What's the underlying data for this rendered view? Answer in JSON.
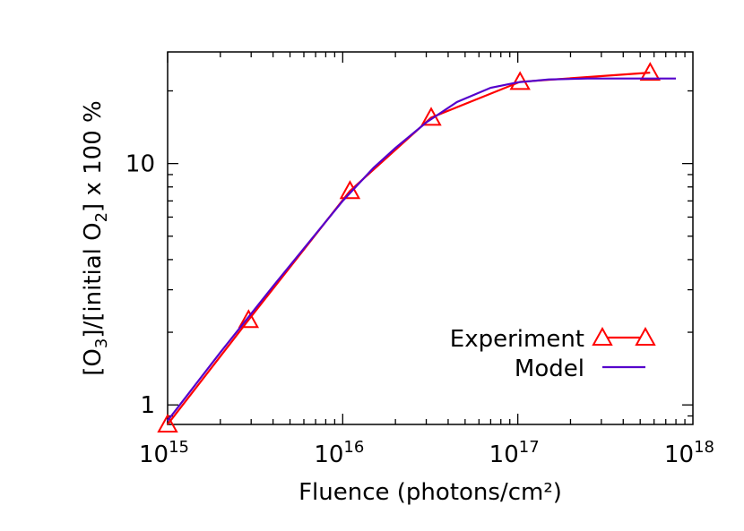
{
  "chart_data": {
    "type": "line",
    "xlabel": "Fluence (photons/cm²)",
    "ylabel_parts": [
      "[O",
      "3",
      "]/[initial O",
      "2",
      "] x 100 %"
    ],
    "x_scale": "log",
    "y_scale": "log",
    "xlim": [
      1000000000000000.0,
      1e+18
    ],
    "ylim": [
      0.83,
      29
    ],
    "x_tick_labels": [
      {
        "base": "10",
        "exp": "15"
      },
      {
        "base": "10",
        "exp": "16"
      },
      {
        "base": "10",
        "exp": "17"
      },
      {
        "base": "10",
        "exp": "18"
      }
    ],
    "y_tick_labels": [
      "1",
      "10"
    ],
    "series": [
      {
        "name": "Experiment",
        "color": "#ff0000",
        "marker": "triangle",
        "x": [
          1000000000000000.0,
          2900000000000000.0,
          1.1e+16,
          3.2e+16,
          1.03e+17,
          5.7e+17
        ],
        "y": [
          0.83,
          2.25,
          7.7,
          15.5,
          21.8,
          23.8
        ]
      },
      {
        "name": "Model",
        "color": "#5500cc",
        "marker": "none",
        "x": [
          1000000000000000.0,
          2000000000000000.0,
          4000000000000000.0,
          7000000000000000.0,
          1e+16,
          1.5e+16,
          2e+16,
          3e+16,
          4.5e+16,
          7e+16,
          1e+17,
          1.5e+17,
          2.5e+17,
          4e+17,
          8e+17
        ],
        "y": [
          0.86,
          1.65,
          3.1,
          5.1,
          7.0,
          9.6,
          11.6,
          14.8,
          18.0,
          20.6,
          21.7,
          22.3,
          22.5,
          22.5,
          22.5
        ]
      }
    ],
    "legend_position": "bottom-right"
  }
}
